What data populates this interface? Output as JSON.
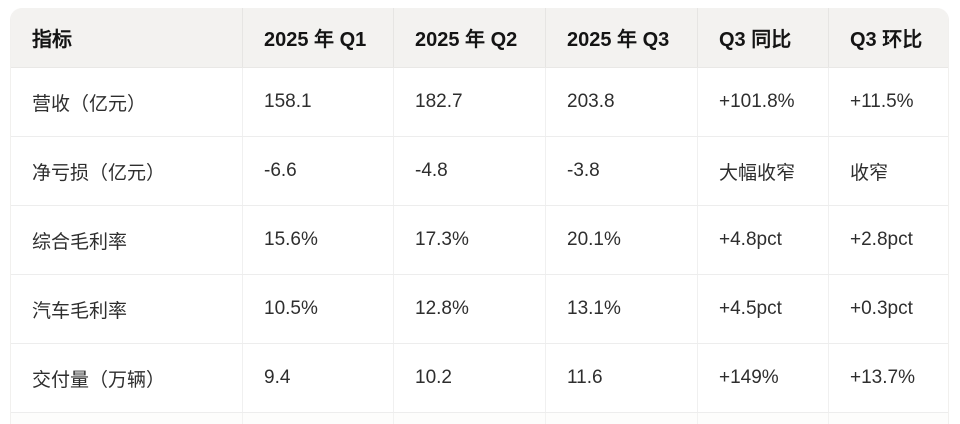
{
  "table": {
    "columns": [
      "指标",
      "2025 年 Q1",
      "2025 年 Q2",
      "2025 年 Q3",
      "Q3 同比",
      "Q3 环比"
    ],
    "rows": [
      [
        "营收（亿元）",
        "158.1",
        "182.7",
        "203.8",
        "+101.8%",
        "+11.5%"
      ],
      [
        "净亏损（亿元）",
        "-6.6",
        "-4.8",
        "-3.8",
        "大幅收窄",
        "收窄"
      ],
      [
        "综合毛利率",
        "15.6%",
        "17.3%",
        "20.1%",
        "+4.8pct",
        "+2.8pct"
      ],
      [
        "汽车毛利率",
        "10.5%",
        "12.8%",
        "13.1%",
        "+4.5pct",
        "+0.3pct"
      ],
      [
        "交付量（万辆）",
        "9.4",
        "10.2",
        "11.6",
        "+149%",
        "+13.7%"
      ]
    ]
  },
  "colors": {
    "header_bg": "#f3f2f0",
    "body_bg": "#ffffff",
    "header_text": "#141414",
    "body_text": "#2e2e2e",
    "divider": "#ededed"
  },
  "chart_data": {
    "type": "table",
    "title": "",
    "columns": [
      "指标",
      "2025 年 Q1",
      "2025 年 Q2",
      "2025 年 Q3",
      "Q3 同比",
      "Q3 环比"
    ],
    "rows": [
      {
        "指标": "营收（亿元）",
        "2025 年 Q1": 158.1,
        "2025 年 Q2": 182.7,
        "2025 年 Q3": 203.8,
        "Q3 同比": "+101.8%",
        "Q3 环比": "+11.5%"
      },
      {
        "指标": "净亏损（亿元）",
        "2025 年 Q1": -6.6,
        "2025 年 Q2": -4.8,
        "2025 年 Q3": -3.8,
        "Q3 同比": "大幅收窄",
        "Q3 环比": "收窄"
      },
      {
        "指标": "综合毛利率",
        "2025 年 Q1": "15.6%",
        "2025 年 Q2": "17.3%",
        "2025 年 Q3": "20.1%",
        "Q3 同比": "+4.8pct",
        "Q3 环比": "+2.8pct"
      },
      {
        "指标": "汽车毛利率",
        "2025 年 Q1": "10.5%",
        "2025 年 Q2": "12.8%",
        "2025 年 Q3": "13.1%",
        "Q3 同比": "+4.5pct",
        "Q3 环比": "+0.3pct"
      },
      {
        "指标": "交付量（万辆）",
        "2025 年 Q1": 9.4,
        "2025 年 Q2": 10.2,
        "2025 年 Q3": 11.6,
        "Q3 同比": "+149%",
        "Q3 环比": "+13.7%"
      }
    ]
  }
}
